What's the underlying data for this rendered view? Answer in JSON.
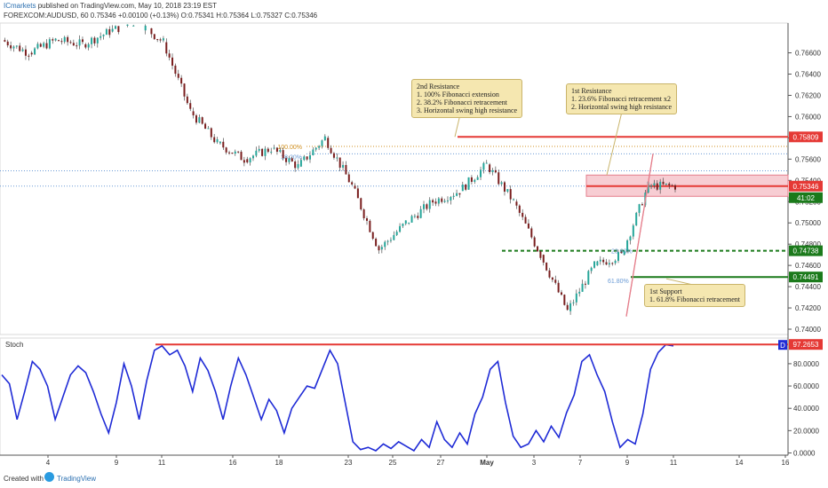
{
  "header": {
    "publisher": "ICmarkets",
    "published_text": "published on TradingView.com, May 10, 2018 23:19 EST",
    "ohlc": "FOREXCOM:AUDUSD, 60  0.75346  +0.00100 (+0.13%)  O:0.75341  H:0.75364  L:0.75327  C:0.75346"
  },
  "footer": {
    "created_with": "Created with",
    "logo_text": "TradingView"
  },
  "chart_data": [
    {
      "type": "line",
      "title": "FOREXCOM:AUDUSD, 60",
      "price_axis_ticks": [
        "0.76600",
        "0.76400",
        "0.76200",
        "0.76000",
        "0.75800",
        "0.75600",
        "0.75400",
        "0.75200",
        "0.75000",
        "0.74800",
        "0.74600",
        "0.74400",
        "0.74200",
        "0.74000"
      ],
      "price_axis_range": [
        0.7395,
        0.7688
      ],
      "x_tick_labels": [
        "4",
        "9",
        "11",
        "16",
        "18",
        "23",
        "25",
        "27",
        "May",
        "3",
        "7",
        "9",
        "11",
        "14",
        "16"
      ],
      "approx_price_path": [
        {
          "x": "Apr 2",
          "y": 0.7672
        },
        {
          "x": "Apr 3",
          "y": 0.766
        },
        {
          "x": "Apr 4",
          "y": 0.7672
        },
        {
          "x": "Apr 9",
          "y": 0.7668
        },
        {
          "x": "Apr 11",
          "y": 0.768
        },
        {
          "x": "Apr 18",
          "y": 0.769
        },
        {
          "x": "Apr 23",
          "y": 0.767
        },
        {
          "x": "Apr 24",
          "y": 0.7605
        },
        {
          "x": "Apr 25",
          "y": 0.7575
        },
        {
          "x": "Apr 26",
          "y": 0.756
        },
        {
          "x": "Apr 27",
          "y": 0.757
        },
        {
          "x": "Apr 27b",
          "y": 0.7553
        },
        {
          "x": "Apr 28",
          "y": 0.758
        },
        {
          "x": "Apr 30",
          "y": 0.7535
        },
        {
          "x": "May 1",
          "y": 0.7475
        },
        {
          "x": "May 2",
          "y": 0.75
        },
        {
          "x": "May 3",
          "y": 0.752
        },
        {
          "x": "May 4",
          "y": 0.753
        },
        {
          "x": "May 6",
          "y": 0.7555
        },
        {
          "x": "May 7",
          "y": 0.752
        },
        {
          "x": "May 8",
          "y": 0.747
        },
        {
          "x": "May 9",
          "y": 0.7417
        },
        {
          "x": "May 9b",
          "y": 0.746
        },
        {
          "x": "May 10",
          "y": 0.747
        },
        {
          "x": "May 10b",
          "y": 0.7535
        },
        {
          "x": "May 11",
          "y": 0.75346
        }
      ],
      "levels": [
        {
          "name": "resistance-2",
          "value": "0.75809",
          "color": "#e53935",
          "style": "solid"
        },
        {
          "name": "current",
          "value": "0.75346",
          "color": "#e53935",
          "style": "solid"
        },
        {
          "name": "support-1",
          "value": "0.74738",
          "color": "#1b7a1b",
          "style": "dashed"
        },
        {
          "name": "support-2",
          "value": "0.74491",
          "color": "#1b7a1b",
          "style": "solid"
        }
      ],
      "resistance_zone": [
        0.7525,
        0.7545
      ],
      "fib_labels": {
        "fib_100": "100.00%",
        "fib_38": "38.20%",
        "fib_23": "23.60%",
        "fib_61": "61.80%"
      },
      "fib_levels": {
        "fib_100": 0.7572,
        "fib_38": 0.7565,
        "fib_23": 0.7474,
        "fib_61": 0.7446
      },
      "annotations": {
        "second_resistance": [
          "2nd Resistance",
          "1. 100% Fibonacci extension",
          "2. 38.2% Fibonacci retracement",
          "3. Horizontal swing high resistance"
        ],
        "first_resistance": [
          "1st Resistance",
          "1. 23.6% Fibonacci retracement x2",
          "2. Horizontal swing high resistance"
        ],
        "first_support": [
          "1st Support",
          "1. 61.8% Fibonacci retracement"
        ]
      },
      "countdown": "41:02",
      "accent_color": "#e53935"
    },
    {
      "type": "line",
      "title": "Stoch",
      "y_axis_ticks": [
        "80.0000",
        "60.0000",
        "40.0000",
        "20.0000",
        "0.0000"
      ],
      "ylim": [
        -2,
        103
      ],
      "level_tag": "97.2653",
      "badge": "D",
      "series": [
        {
          "color": "#1f2bd6",
          "values": [
            70,
            62,
            30,
            55,
            82,
            75,
            60,
            30,
            50,
            70,
            78,
            72,
            55,
            35,
            18,
            45,
            80,
            60,
            30,
            65,
            92,
            96,
            88,
            92,
            78,
            55,
            85,
            74,
            55,
            30,
            60,
            85,
            70,
            50,
            30,
            48,
            38,
            18,
            40,
            50,
            60,
            58,
            75,
            92,
            80,
            45,
            10,
            3,
            5,
            2,
            8,
            4,
            10,
            6,
            2,
            12,
            5,
            28,
            12,
            5,
            18,
            8,
            35,
            50,
            75,
            82,
            45,
            15,
            5,
            8,
            20,
            10,
            24,
            14,
            36,
            52,
            82,
            88,
            70,
            55,
            28,
            5,
            12,
            8,
            35,
            75,
            90,
            97,
            96
          ]
        }
      ]
    }
  ]
}
